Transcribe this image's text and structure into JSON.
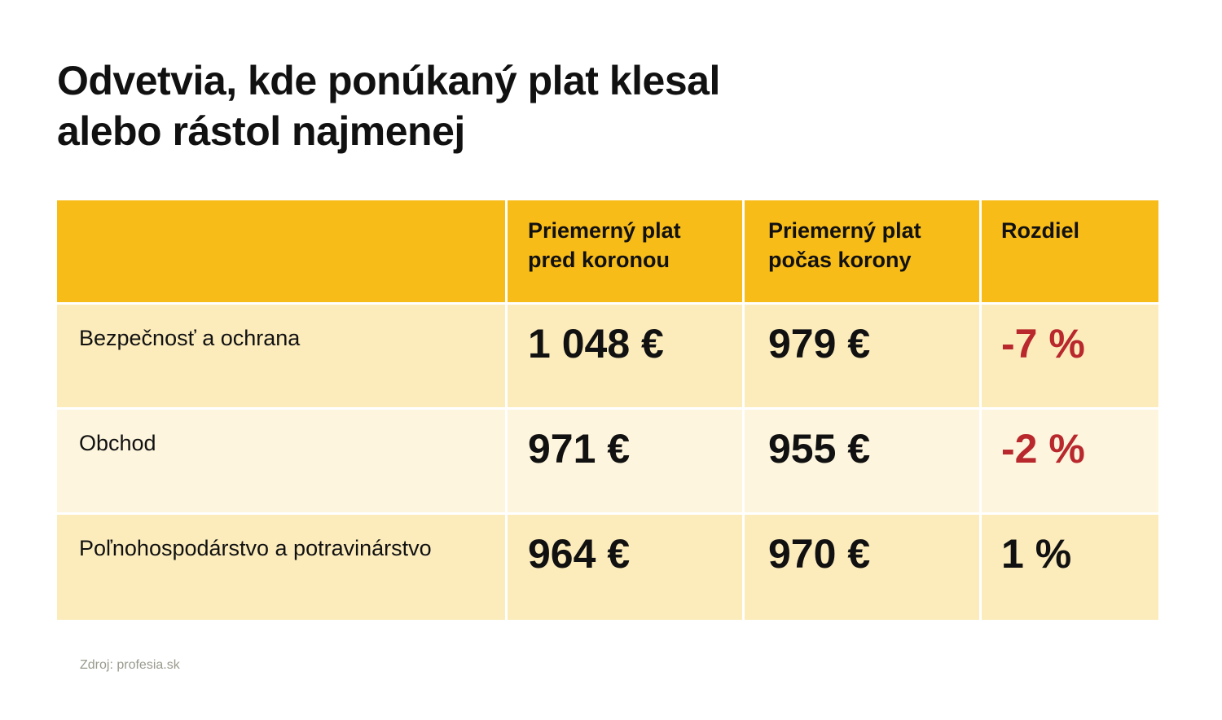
{
  "title": {
    "line1": "Odvetvia, kde ponúkaný plat klesal",
    "line2": "alebo rástol najmenej"
  },
  "table": {
    "headers": [
      {
        "line1": "",
        "line2": ""
      },
      {
        "line1": "Priemerný plat",
        "line2": "pred koronou"
      },
      {
        "line1": "Priemerný plat",
        "line2": "počas korony"
      },
      {
        "line1": "Rozdiel",
        "line2": ""
      }
    ],
    "rows": [
      {
        "sector": "Bezpečnosť a ochrana",
        "before": "1 048 €",
        "during": "979 €",
        "diff": "-7 %"
      },
      {
        "sector": "Obchod",
        "before": "971 €",
        "during": "955 €",
        "diff": "-2 %"
      },
      {
        "sector": "Poľnohospodárstvo a potravinárstvo",
        "before": "964 €",
        "during": "970 €",
        "diff": "1 %"
      }
    ]
  },
  "colors": {
    "header": "#f8bc19",
    "row_dark": "#fcecbc",
    "row_light": "#fdf5dd",
    "negative": "#b8282d"
  },
  "source": "Zdroj: profesia.sk",
  "chart_data": {
    "type": "table",
    "title": "Odvetvia, kde ponúkaný plat klesal alebo rástol najmenej",
    "columns": [
      "",
      "Priemerný plat pred koronou",
      "Priemerný plat počas korony",
      "Rozdiel"
    ],
    "rows": [
      [
        "Bezpečnosť a ochrana",
        1048,
        979,
        -7
      ],
      [
        "Obchod",
        971,
        955,
        -2
      ],
      [
        "Poľnohospodárstvo a potravinárstvo",
        964,
        970,
        1
      ]
    ],
    "units": {
      "salary": "€",
      "difference": "%"
    }
  }
}
